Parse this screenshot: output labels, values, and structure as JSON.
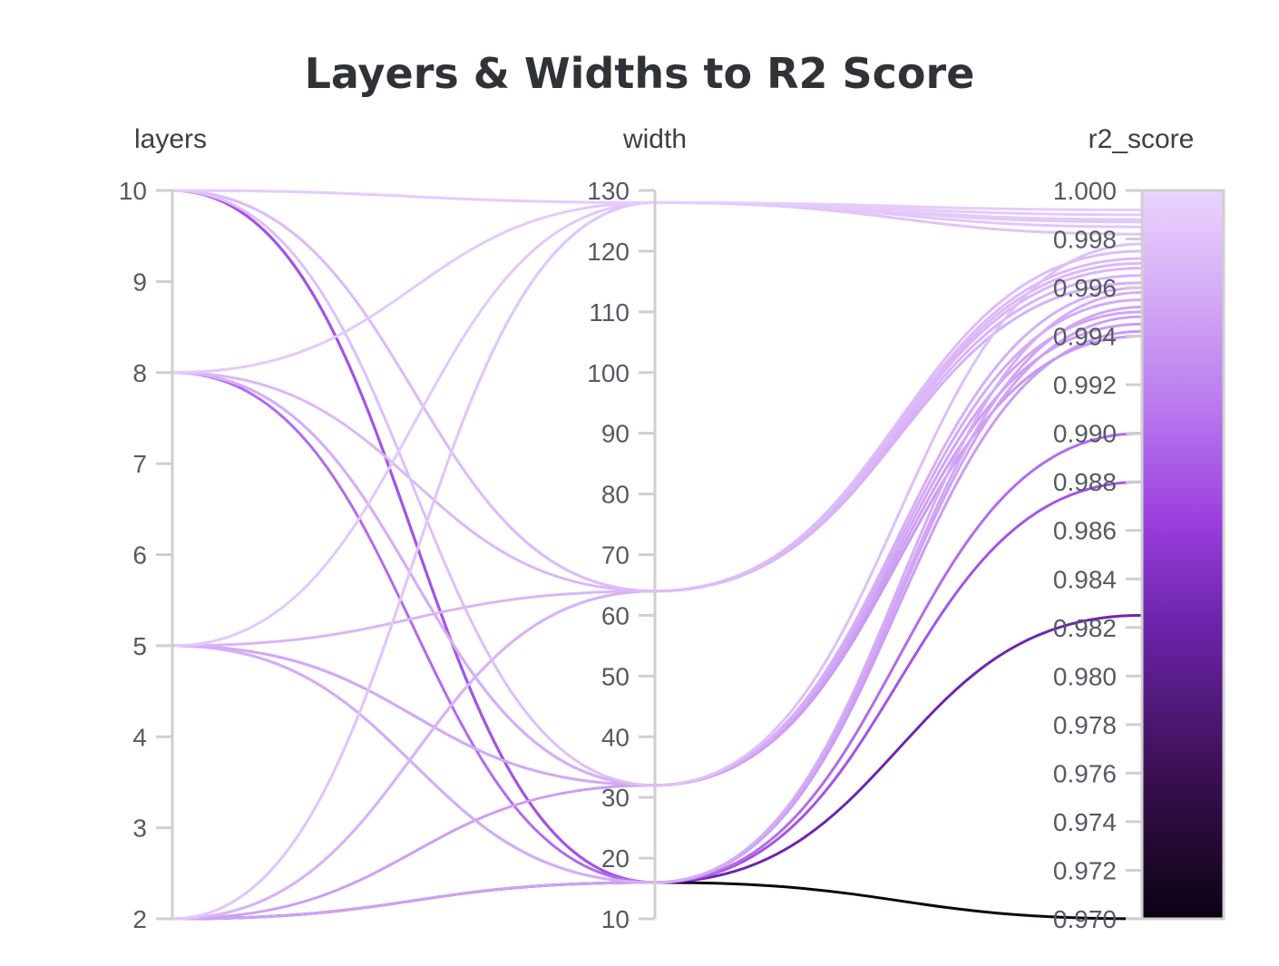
{
  "chart_data": {
    "type": "parallel-coordinates",
    "title": "Layers & Widths to R2 Score",
    "dimensions": [
      {
        "key": "layers",
        "label": "layers",
        "range": [
          2,
          10
        ],
        "ticks": [
          2,
          3,
          4,
          5,
          6,
          7,
          8,
          9,
          10
        ]
      },
      {
        "key": "width",
        "label": "width",
        "range": [
          10,
          130
        ],
        "ticks": [
          10,
          20,
          30,
          40,
          50,
          60,
          70,
          80,
          90,
          100,
          110,
          120,
          130
        ]
      },
      {
        "key": "r2_score",
        "label": "r2_score",
        "range": [
          0.97,
          1.0
        ],
        "ticks": [
          "0.970",
          "0.972",
          "0.974",
          "0.976",
          "0.978",
          "0.980",
          "0.982",
          "0.984",
          "0.986",
          "0.988",
          "0.990",
          "0.992",
          "0.994",
          "0.996",
          "0.998",
          "1.000"
        ]
      }
    ],
    "colorscale": {
      "by": "r2_score",
      "range": [
        0.97,
        1.0
      ],
      "stops": [
        [
          0.0,
          "#0b0212"
        ],
        [
          0.2,
          "#3a1052"
        ],
        [
          0.4,
          "#6a23a8"
        ],
        [
          0.55,
          "#9b40e0"
        ],
        [
          0.7,
          "#b878ee"
        ],
        [
          0.85,
          "#d3a9f6"
        ],
        [
          1.0,
          "#ead4fd"
        ]
      ]
    },
    "runs": [
      {
        "layers": 10,
        "width": 128,
        "r2_score": 0.9992
      },
      {
        "layers": 10,
        "width": 128,
        "r2_score": 0.999
      },
      {
        "layers": 8,
        "width": 128,
        "r2_score": 0.9988
      },
      {
        "layers": 5,
        "width": 128,
        "r2_score": 0.9987
      },
      {
        "layers": 2,
        "width": 128,
        "r2_score": 0.9985
      },
      {
        "layers": 2,
        "width": 128,
        "r2_score": 0.9982
      },
      {
        "layers": 10,
        "width": 64,
        "r2_score": 0.9975
      },
      {
        "layers": 10,
        "width": 64,
        "r2_score": 0.9972
      },
      {
        "layers": 8,
        "width": 64,
        "r2_score": 0.997
      },
      {
        "layers": 5,
        "width": 64,
        "r2_score": 0.9968
      },
      {
        "layers": 2,
        "width": 64,
        "r2_score": 0.9965
      },
      {
        "layers": 2,
        "width": 64,
        "r2_score": 0.9962
      },
      {
        "layers": 10,
        "width": 32,
        "r2_score": 0.9978
      },
      {
        "layers": 8,
        "width": 32,
        "r2_score": 0.996
      },
      {
        "layers": 5,
        "width": 32,
        "r2_score": 0.9955
      },
      {
        "layers": 5,
        "width": 32,
        "r2_score": 0.995
      },
      {
        "layers": 2,
        "width": 32,
        "r2_score": 0.9945
      },
      {
        "layers": 8,
        "width": 32,
        "r2_score": 0.994
      },
      {
        "layers": 5,
        "width": 16,
        "r2_score": 0.9958
      },
      {
        "layers": 5,
        "width": 16,
        "r2_score": 0.9952
      },
      {
        "layers": 2,
        "width": 16,
        "r2_score": 0.9948
      },
      {
        "layers": 2,
        "width": 16,
        "r2_score": 0.9942
      },
      {
        "layers": 8,
        "width": 16,
        "r2_score": 0.99
      },
      {
        "layers": 10,
        "width": 16,
        "r2_score": 0.988
      },
      {
        "layers": 10,
        "width": 16,
        "r2_score": 0.9825
      },
      {
        "layers": 2,
        "width": 16,
        "r2_score": 0.97
      }
    ]
  }
}
